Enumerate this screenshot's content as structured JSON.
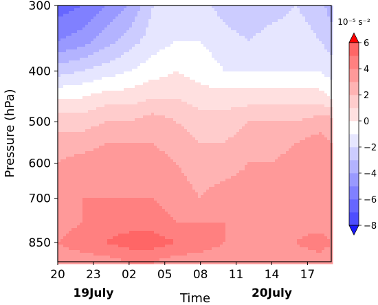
{
  "chart_data": {
    "type": "heatmap",
    "title": "",
    "xlabel": "Time",
    "ylabel": "Pressure (hPa)",
    "x_ticks": [
      "20",
      "23",
      "02",
      "05",
      "08",
      "11",
      "14",
      "17"
    ],
    "x_tick_hours": [
      0,
      3,
      6,
      9,
      12,
      15,
      18,
      21
    ],
    "x_range_hours": [
      0,
      23
    ],
    "date_labels": [
      {
        "text": "19July",
        "hour": 3
      },
      {
        "text": "20July",
        "hour": 18
      }
    ],
    "y_ticks": [
      300,
      400,
      500,
      600,
      700,
      850
    ],
    "y_range_hPa": [
      300,
      925
    ],
    "y_scale": "log",
    "colorbar": {
      "unit_label": "10⁻⁵ s⁻²",
      "ticks": [
        6,
        4,
        2,
        0,
        -2,
        -4,
        -6,
        -8
      ],
      "levels": [
        -8,
        -7,
        -6,
        -5,
        -4,
        -3,
        -2,
        -1,
        0,
        1,
        2,
        3,
        4,
        5,
        6
      ],
      "colors": [
        "#1a1aff",
        "#3333ff",
        "#4d4dff",
        "#6666ff",
        "#8080ff",
        "#9999ff",
        "#b3b3ff",
        "#ccccff",
        "#e6e6ff",
        "#ffffff",
        "#ffe0e0",
        "#ffcccc",
        "#ffb3b3",
        "#ff9999",
        "#ff8080",
        "#ff6666",
        "#ff4d4d",
        "#ff3333",
        "#ff1a1a",
        "#ff0000"
      ],
      "extend": "both"
    },
    "field_units": "10⁻⁵ s⁻²",
    "field_rows": [
      {
        "p": 300,
        "values": [
          -7.5,
          -7,
          -6,
          -5,
          -3,
          -2,
          -2.5,
          -3.5,
          -4,
          -3.5,
          -3,
          -3.5,
          -4.5
        ]
      },
      {
        "p": 350,
        "values": [
          -6,
          -5.5,
          -4.5,
          -3.5,
          -2.5,
          -2,
          -2,
          -2.5,
          -3,
          -2.5,
          -2.5,
          -3,
          -3.5
        ]
      },
      {
        "p": 400,
        "values": [
          -3.5,
          -3,
          -2.5,
          -2,
          -1.5,
          -1,
          -1.5,
          -2,
          -2,
          -2,
          -2,
          -2,
          -2.5
        ]
      },
      {
        "p": 450,
        "values": [
          -1,
          -1,
          -0.5,
          -0.5,
          0,
          0,
          -0.5,
          -0.5,
          -0.5,
          -0.5,
          -0.5,
          -0.5,
          -1
        ]
      },
      {
        "p": 500,
        "values": [
          0.5,
          0.5,
          1,
          1,
          1.5,
          1,
          0.5,
          0.5,
          1,
          1,
          1,
          1.5,
          1.5
        ]
      },
      {
        "p": 550,
        "values": [
          1.5,
          1.5,
          2,
          2,
          2,
          1.5,
          1,
          1,
          1.5,
          1.5,
          2,
          2.5,
          2
        ]
      },
      {
        "p": 600,
        "values": [
          2,
          2.5,
          2.5,
          2.5,
          2.5,
          2,
          1.5,
          1.5,
          2,
          2,
          2.5,
          2.5,
          2.5
        ]
      },
      {
        "p": 700,
        "values": [
          2.5,
          3,
          3,
          3,
          3,
          2.5,
          2,
          2.5,
          2.5,
          2.5,
          2.5,
          3,
          2.5
        ]
      },
      {
        "p": 775,
        "values": [
          2.5,
          3,
          3.5,
          3.5,
          3.5,
          3,
          3,
          3,
          2.5,
          2.5,
          2.5,
          2.5,
          2.5
        ]
      },
      {
        "p": 850,
        "values": [
          3,
          3.5,
          4,
          4.5,
          4.5,
          4,
          3.5,
          3,
          3,
          2.5,
          3,
          3.5,
          3
        ]
      },
      {
        "p": 925,
        "values": [
          2.5,
          2.5,
          2.5,
          3,
          3,
          2.5,
          2.5,
          2.5,
          2.5,
          2.5,
          2.5,
          2.5,
          2.5
        ]
      }
    ],
    "field_hours": [
      0,
      2,
      4,
      6,
      8,
      10,
      12,
      14,
      16,
      18,
      20,
      22,
      23
    ],
    "grid": false,
    "legend": "none"
  }
}
